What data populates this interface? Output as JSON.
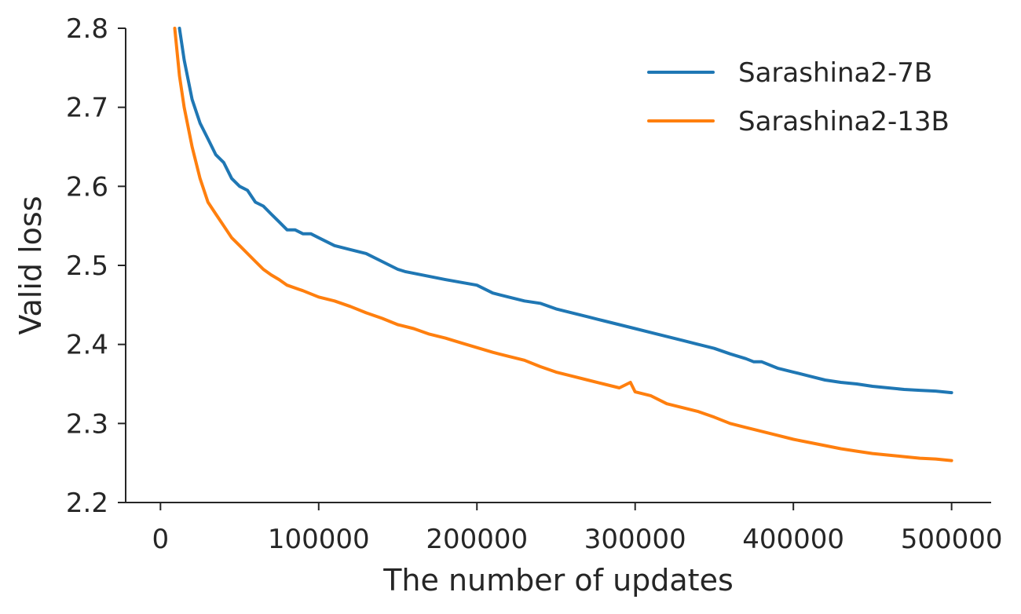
{
  "chart_data": {
    "type": "line",
    "xlabel": "The number of updates",
    "ylabel": "Valid loss",
    "xlim": [
      -22000,
      525000
    ],
    "ylim": [
      2.2,
      2.8
    ],
    "xticks": [
      0,
      100000,
      200000,
      300000,
      400000,
      500000
    ],
    "xtick_labels": [
      "0",
      "100000",
      "200000",
      "300000",
      "400000",
      "500000"
    ],
    "yticks": [
      2.2,
      2.3,
      2.4,
      2.5,
      2.6,
      2.7,
      2.8
    ],
    "ytick_labels": [
      "2.2",
      "2.3",
      "2.4",
      "2.5",
      "2.6",
      "2.7",
      "2.8"
    ],
    "grid": false,
    "legend_position": "top-right",
    "series": [
      {
        "name": "Sarashina2-7B",
        "color": "#1f77b4",
        "x": [
          12000,
          15000,
          20000,
          25000,
          30000,
          35000,
          40000,
          45000,
          50000,
          55000,
          60000,
          65000,
          70000,
          75000,
          80000,
          85000,
          90000,
          95000,
          100000,
          110000,
          120000,
          130000,
          140000,
          145000,
          150000,
          155000,
          160000,
          180000,
          200000,
          205000,
          210000,
          220000,
          230000,
          240000,
          250000,
          260000,
          270000,
          280000,
          290000,
          300000,
          310000,
          320000,
          330000,
          340000,
          350000,
          360000,
          370000,
          375000,
          380000,
          390000,
          400000,
          410000,
          420000,
          430000,
          440000,
          450000,
          460000,
          470000,
          480000,
          490000,
          500000
        ],
        "values": [
          2.8,
          2.76,
          2.71,
          2.68,
          2.66,
          2.64,
          2.63,
          2.61,
          2.6,
          2.595,
          2.58,
          2.575,
          2.565,
          2.555,
          2.545,
          2.545,
          2.54,
          2.54,
          2.535,
          2.525,
          2.52,
          2.515,
          2.505,
          2.5,
          2.495,
          2.492,
          2.49,
          2.482,
          2.475,
          2.47,
          2.465,
          2.46,
          2.455,
          2.452,
          2.445,
          2.44,
          2.435,
          2.43,
          2.425,
          2.42,
          2.415,
          2.41,
          2.405,
          2.4,
          2.395,
          2.388,
          2.382,
          2.378,
          2.378,
          2.37,
          2.365,
          2.36,
          2.355,
          2.352,
          2.35,
          2.347,
          2.345,
          2.343,
          2.342,
          2.341,
          2.339
        ]
      },
      {
        "name": "Sarashina2-13B",
        "color": "#ff7f0e",
        "x": [
          9000,
          12000,
          15000,
          20000,
          25000,
          30000,
          35000,
          40000,
          45000,
          50000,
          55000,
          60000,
          65000,
          70000,
          75000,
          80000,
          90000,
          100000,
          110000,
          120000,
          130000,
          140000,
          150000,
          160000,
          170000,
          180000,
          190000,
          200000,
          210000,
          220000,
          230000,
          240000,
          250000,
          260000,
          270000,
          280000,
          290000,
          297000,
          300000,
          310000,
          320000,
          330000,
          340000,
          350000,
          360000,
          370000,
          380000,
          390000,
          400000,
          410000,
          420000,
          430000,
          440000,
          450000,
          460000,
          470000,
          480000,
          490000,
          500000
        ],
        "values": [
          2.8,
          2.74,
          2.7,
          2.65,
          2.61,
          2.58,
          2.565,
          2.55,
          2.535,
          2.525,
          2.515,
          2.505,
          2.495,
          2.488,
          2.482,
          2.475,
          2.468,
          2.46,
          2.455,
          2.448,
          2.44,
          2.433,
          2.425,
          2.42,
          2.413,
          2.408,
          2.402,
          2.396,
          2.39,
          2.385,
          2.38,
          2.372,
          2.365,
          2.36,
          2.355,
          2.35,
          2.345,
          2.352,
          2.34,
          2.335,
          2.325,
          2.32,
          2.315,
          2.308,
          2.3,
          2.295,
          2.29,
          2.285,
          2.28,
          2.276,
          2.272,
          2.268,
          2.265,
          2.262,
          2.26,
          2.258,
          2.256,
          2.255,
          2.253
        ]
      }
    ]
  }
}
